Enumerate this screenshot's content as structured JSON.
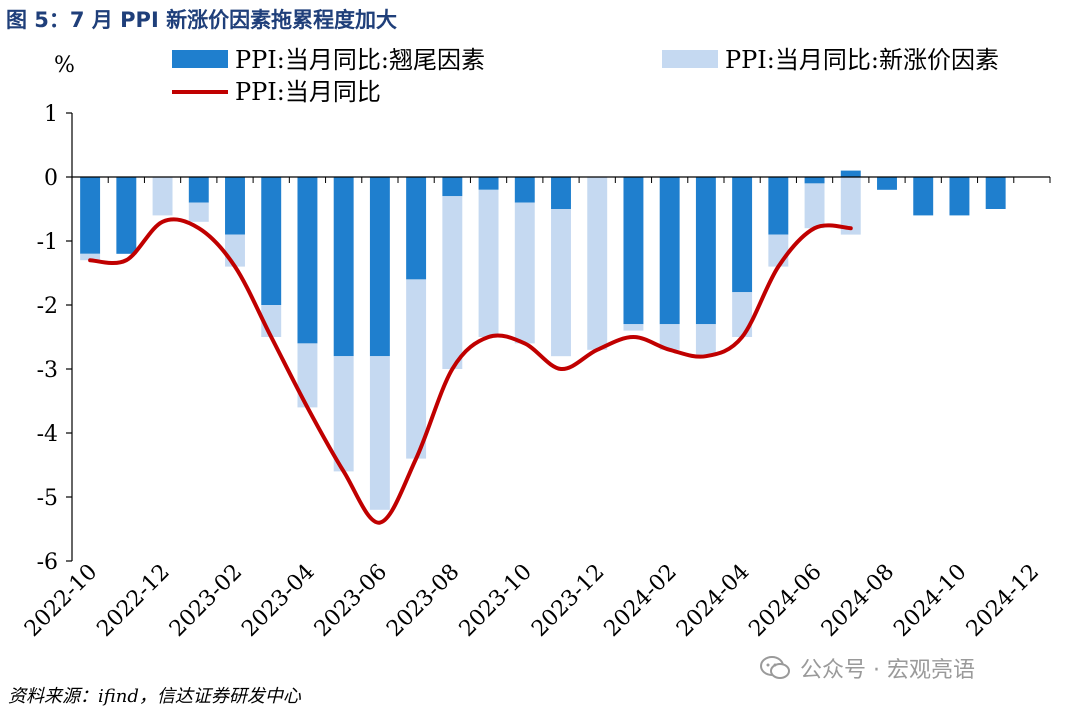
{
  "figure_title": "图 5：7 月 PPI 新涨价因素拖累程度加大",
  "source": "资料来源：ifind，信达证券研发中心",
  "watermark": "公众号 · 宏观亮语",
  "chart_data": {
    "type": "bar",
    "title": "",
    "ylabel": "%",
    "xlabel": "",
    "ylim": [
      -6,
      1
    ],
    "yticks": [
      1,
      0,
      -1,
      -2,
      -3,
      -4,
      -5,
      -6
    ],
    "legend_position": "top",
    "categories": [
      "2022-10",
      "2022-11",
      "2022-12",
      "2023-01",
      "2023-02",
      "2023-03",
      "2023-04",
      "2023-05",
      "2023-06",
      "2023-07",
      "2023-08",
      "2023-09",
      "2023-10",
      "2023-11",
      "2023-12",
      "2024-01",
      "2024-02",
      "2024-03",
      "2024-04",
      "2024-05",
      "2024-06",
      "2024-07",
      "2024-08",
      "2024-09",
      "2024-10",
      "2024-11",
      "2024-12"
    ],
    "xtick_labels": [
      "2022-10",
      "2022-12",
      "2023-02",
      "2023-04",
      "2023-06",
      "2023-08",
      "2023-10",
      "2023-12",
      "2024-02",
      "2024-04",
      "2024-06",
      "2024-08",
      "2024-10",
      "2024-12"
    ],
    "series": [
      {
        "name": "PPI:当月同比:翘尾因素",
        "kind": "bar",
        "color": "#1f7fce",
        "values": [
          -1.2,
          -1.2,
          0.0,
          -0.4,
          -0.9,
          -2.0,
          -2.6,
          -2.8,
          -2.8,
          -1.6,
          -0.3,
          -0.2,
          -0.4,
          -0.5,
          0.0,
          -2.3,
          -2.3,
          -2.3,
          -1.8,
          -0.9,
          -0.1,
          0.1,
          -0.2,
          -0.6,
          -0.6,
          -0.5,
          null
        ]
      },
      {
        "name": "PPI:当月同比:新涨价因素",
        "kind": "bar",
        "color": "#c5d9f1",
        "values": [
          -0.1,
          0.0,
          -0.6,
          -0.3,
          -0.5,
          -0.5,
          -1.0,
          -1.8,
          -2.4,
          -2.8,
          -2.7,
          -2.3,
          -2.2,
          -2.3,
          -2.7,
          -0.1,
          -0.4,
          -0.5,
          -0.7,
          -0.5,
          -0.7,
          -0.9,
          null,
          null,
          null,
          null,
          null
        ]
      },
      {
        "name": "PPI:当月同比",
        "kind": "line",
        "color": "#c00000",
        "values": [
          -1.3,
          -1.3,
          -0.7,
          -0.8,
          -1.4,
          -2.5,
          -3.6,
          -4.6,
          -5.4,
          -4.4,
          -3.0,
          -2.5,
          -2.6,
          -3.0,
          -2.7,
          -2.5,
          -2.7,
          -2.8,
          -2.5,
          -1.4,
          -0.8,
          -0.8,
          null,
          null,
          null,
          null,
          null
        ]
      }
    ]
  }
}
